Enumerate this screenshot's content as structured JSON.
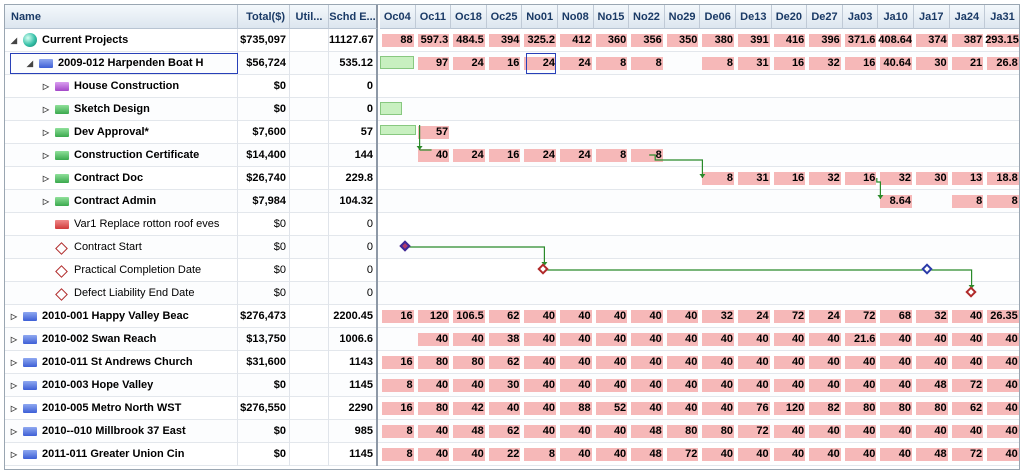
{
  "columns": {
    "name": "Name",
    "total": "Total($)",
    "util": "Util...",
    "schd": "Schd E...",
    "weeks": [
      "Oc04",
      "Oc11",
      "Oc18",
      "Oc25",
      "No01",
      "No08",
      "No15",
      "No22",
      "No29",
      "De06",
      "De13",
      "De20",
      "De27",
      "Ja03",
      "Ja10",
      "Ja17",
      "Ja24",
      "Ja31"
    ]
  },
  "rows": [
    {
      "name": "Current Projects",
      "total": "$735,097",
      "schd": "11127.67",
      "bold": true,
      "icon": "globe-icon",
      "indent": 0,
      "expander": "◢",
      "cells": [
        "88",
        "597.3",
        "484.5",
        "394",
        "325.2",
        "412",
        "360",
        "356",
        "350",
        "380",
        "391",
        "416",
        "396",
        "371.6",
        "408.64",
        "374",
        "387",
        "293.15"
      ]
    },
    {
      "name": "2009-012 Harpenden Boat H",
      "total": "$56,724",
      "schd": "535.12",
      "bold": true,
      "icon": "blue-flag-icon",
      "indent": 1,
      "expander": "◢",
      "selected": true,
      "cells": [
        "",
        "97",
        "24",
        "16",
        "24",
        "24",
        "8",
        "8",
        "",
        "8",
        "31",
        "16",
        "32",
        "16",
        "40.64",
        "30",
        "21",
        "26.8"
      ]
    },
    {
      "name": "House Construction",
      "total": "$0",
      "schd": "0",
      "bold": true,
      "icon": "purple-flag-icon",
      "indent": 2,
      "expander": "▷",
      "cells": []
    },
    {
      "name": "Sketch Design",
      "total": "$0",
      "schd": "0",
      "bold": true,
      "icon": "green-flag-icon",
      "indent": 2,
      "expander": "▷",
      "cells": []
    },
    {
      "name": "Dev Approval*",
      "total": "$7,600",
      "schd": "57",
      "bold": true,
      "icon": "green-flag-icon",
      "indent": 2,
      "expander": "▷",
      "cells": [
        "",
        "57",
        "",
        "",
        "",
        "",
        "",
        "",
        "",
        "",
        "",
        "",
        "",
        "",
        "",
        "",
        "",
        ""
      ]
    },
    {
      "name": "Construction Certificate",
      "total": "$14,400",
      "schd": "144",
      "bold": true,
      "icon": "green-flag-icon",
      "indent": 2,
      "expander": "▷",
      "cells": [
        "",
        "40",
        "24",
        "16",
        "24",
        "24",
        "8",
        "8",
        "",
        "",
        "",
        "",
        "",
        "",
        "",
        "",
        "",
        ""
      ]
    },
    {
      "name": "Contract Doc",
      "total": "$26,740",
      "schd": "229.8",
      "bold": true,
      "icon": "green-flag-icon",
      "indent": 2,
      "expander": "▷",
      "cells": [
        "",
        "",
        "",
        "",
        "",
        "",
        "",
        "",
        "",
        "8",
        "31",
        "16",
        "32",
        "16",
        "32",
        "30",
        "13",
        "18.8"
      ]
    },
    {
      "name": "Contract Admin",
      "total": "$7,984",
      "schd": "104.32",
      "bold": true,
      "icon": "green-flag-icon",
      "indent": 2,
      "expander": "▷",
      "cells": [
        "",
        "",
        "",
        "",
        "",
        "",
        "",
        "",
        "",
        "",
        "",
        "",
        "",
        "",
        "8.64",
        "",
        "8",
        "8"
      ]
    },
    {
      "name": "Var1 Replace rotton roof eves",
      "total": "$0",
      "schd": "0",
      "bold": false,
      "icon": "red-flag-icon",
      "indent": 2,
      "expander": "",
      "cells": []
    },
    {
      "name": "Contract Start",
      "total": "$0",
      "schd": "0",
      "bold": false,
      "icon": "milestone-icon",
      "indent": 2,
      "expander": "",
      "cells": []
    },
    {
      "name": "Practical Completion Date",
      "total": "$0",
      "schd": "0",
      "bold": false,
      "icon": "milestone-icon",
      "indent": 2,
      "expander": "",
      "cells": []
    },
    {
      "name": "Defect Liability End Date",
      "total": "$0",
      "schd": "0",
      "bold": false,
      "icon": "milestone-icon",
      "indent": 2,
      "expander": "",
      "cells": []
    },
    {
      "name": "2010-001 Happy Valley Beac",
      "total": "$276,473",
      "schd": "2200.45",
      "bold": true,
      "icon": "blue-flag-icon",
      "indent": 0,
      "expander": "▷",
      "cells": [
        "16",
        "120",
        "106.5",
        "62",
        "40",
        "40",
        "40",
        "40",
        "40",
        "32",
        "24",
        "72",
        "24",
        "72",
        "68",
        "32",
        "40",
        "26.35"
      ]
    },
    {
      "name": "2010-002 Swan Reach",
      "total": "$13,750",
      "schd": "1006.6",
      "bold": true,
      "icon": "blue-flag-icon",
      "indent": 0,
      "expander": "▷",
      "cells": [
        "",
        "40",
        "40",
        "38",
        "40",
        "40",
        "40",
        "40",
        "40",
        "40",
        "40",
        "40",
        "40",
        "21.6",
        "40",
        "40",
        "40",
        "40"
      ]
    },
    {
      "name": "2010-011 St Andrews Church",
      "total": "$31,600",
      "schd": "1143",
      "bold": true,
      "icon": "blue-flag-icon",
      "indent": 0,
      "expander": "▷",
      "cells": [
        "16",
        "80",
        "80",
        "62",
        "40",
        "40",
        "40",
        "40",
        "40",
        "40",
        "40",
        "40",
        "40",
        "40",
        "40",
        "40",
        "40",
        "40"
      ]
    },
    {
      "name": "2010-003 Hope Valley",
      "total": "$0",
      "schd": "1145",
      "bold": true,
      "icon": "blue-flag-icon",
      "indent": 0,
      "expander": "▷",
      "cells": [
        "8",
        "40",
        "40",
        "30",
        "40",
        "40",
        "40",
        "40",
        "40",
        "40",
        "40",
        "40",
        "40",
        "40",
        "40",
        "48",
        "72",
        "40"
      ]
    },
    {
      "name": "2010-005 Metro North WST",
      "total": "$276,550",
      "schd": "2290",
      "bold": true,
      "icon": "blue-flag-icon",
      "indent": 0,
      "expander": "▷",
      "cells": [
        "16",
        "80",
        "42",
        "40",
        "40",
        "88",
        "52",
        "40",
        "40",
        "40",
        "76",
        "120",
        "82",
        "80",
        "80",
        "80",
        "62",
        "40"
      ]
    },
    {
      "name": "2010--010 Millbrook 37 East",
      "total": "$0",
      "schd": "985",
      "bold": true,
      "icon": "blue-flag-icon",
      "indent": 0,
      "expander": "▷",
      "cells": [
        "8",
        "40",
        "48",
        "62",
        "40",
        "40",
        "40",
        "48",
        "80",
        "80",
        "72",
        "40",
        "40",
        "40",
        "40",
        "40",
        "40",
        "40"
      ]
    },
    {
      "name": "2011-011 Greater Union Cin",
      "total": "$0",
      "schd": "1145",
      "bold": true,
      "icon": "blue-flag-icon",
      "indent": 0,
      "expander": "▷",
      "cells": [
        "8",
        "40",
        "40",
        "22",
        "8",
        "40",
        "40",
        "48",
        "72",
        "40",
        "40",
        "40",
        "40",
        "40",
        "40",
        "48",
        "72",
        "40"
      ]
    }
  ],
  "colors": {
    "hours_bar": "#f6b8b8",
    "task_bar": "#c8f0c0",
    "link": "#2a8a2a",
    "milestone": "#b02a2a",
    "selected": "#2840b8"
  }
}
